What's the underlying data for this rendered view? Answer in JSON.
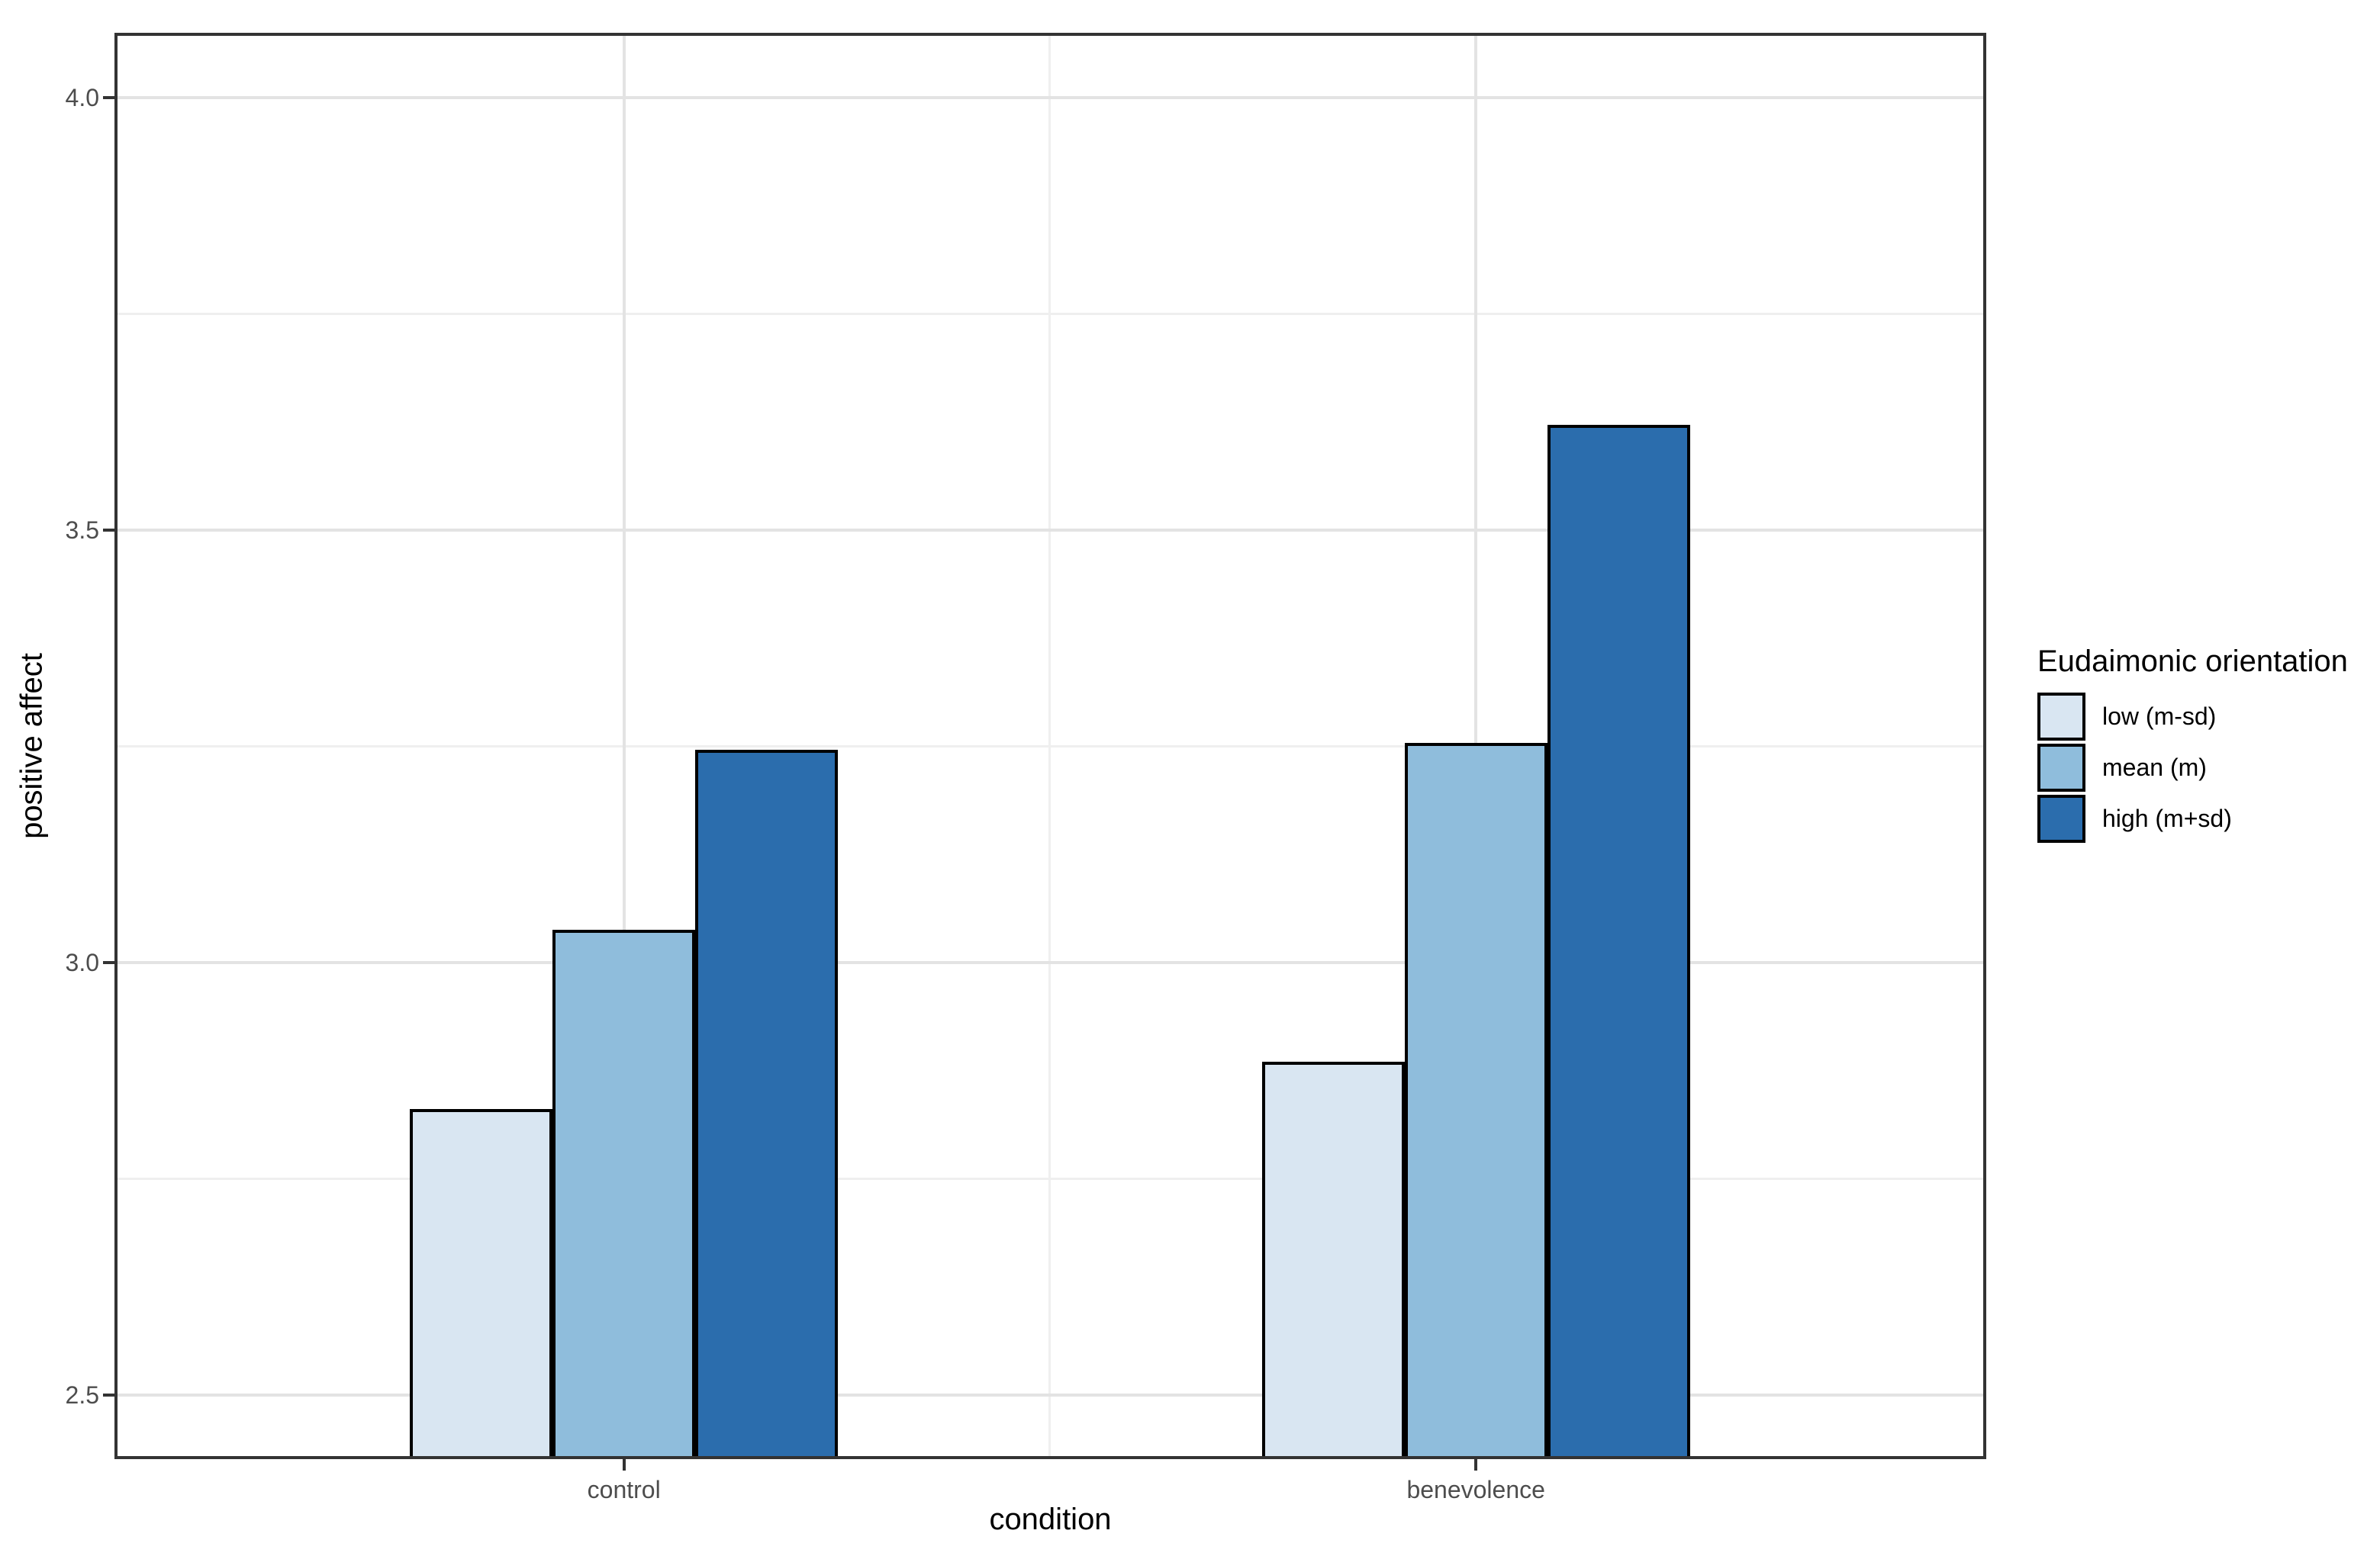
{
  "chart_data": {
    "type": "bar",
    "title": "",
    "xlabel": "condition",
    "ylabel": "positive affect",
    "legend_title": "Eudaimonic orientation",
    "legend_position": "right",
    "categories": [
      "control",
      "benevolence"
    ],
    "series": [
      {
        "name": "low (m-sd)",
        "color": "#d9e6f2",
        "values": [
          2.831,
          2.885
        ]
      },
      {
        "name": "mean (m)",
        "color": "#8fbddc",
        "values": [
          3.038,
          3.254
        ]
      },
      {
        "name": "high (m+sd)",
        "color": "#2b6dad",
        "values": [
          3.246,
          3.622
        ]
      }
    ],
    "bar_outline_color": "#000000",
    "y_ticks": [
      {
        "label": "2.5",
        "value": 2.5
      },
      {
        "label": "3.0",
        "value": 3.0
      },
      {
        "label": "3.5",
        "value": 3.5
      },
      {
        "label": "4.0",
        "value": 4.0
      }
    ],
    "y_minor_ticks": [
      2.75,
      3.25,
      3.75
    ],
    "x_minor_ticks": [
      1.5
    ],
    "ylim": [
      2.426,
      4.075
    ],
    "xlim": [
      0.402,
      2.599
    ],
    "bar_width_units": 0.1675,
    "grid": "horizontal and vertical major gridlines with minor gridlines, light gray on white"
  }
}
